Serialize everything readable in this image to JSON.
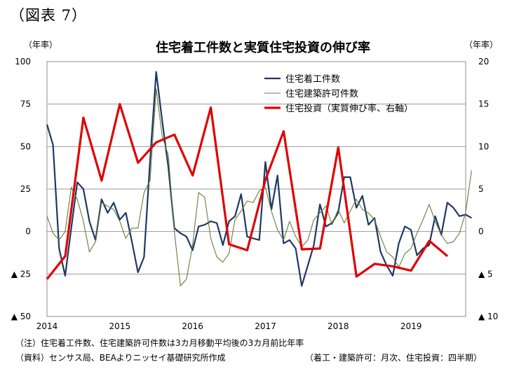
{
  "figure_label": "（図表 7）",
  "notes": {
    "note": "（注）住宅着工件数、住宅建築許可件数は3カ月移動平均後の3カ月前比年率",
    "source": "（資料）センサス局、BEAよりニッセイ基礎研究所作成",
    "frequency": "（着工・建築許可：月次、住宅投資：四半期）"
  },
  "chart_data": {
    "type": "line",
    "title": "住宅着工件数と実質住宅投資の伸び率",
    "left_axis_unit": "（年率）",
    "right_axis_unit": "（年率）",
    "x_labels": [
      "2014",
      "2015",
      "2016",
      "2017",
      "2018",
      "2019"
    ],
    "y_left": {
      "min": -50,
      "max": 100,
      "ticks": [
        100,
        75,
        50,
        25,
        0,
        -25,
        -50
      ],
      "tick_labels": [
        "100",
        "75",
        "50",
        "25",
        "0",
        "▲ 25",
        "▲ 50"
      ]
    },
    "y_right": {
      "min": -10,
      "max": 20,
      "ticks": [
        20,
        15,
        10,
        5,
        0,
        -5,
        -10
      ],
      "tick_labels": [
        "20",
        "15",
        "10",
        "5",
        "0",
        "▲ 5",
        "▲ 10"
      ]
    },
    "grid": true,
    "legend_position": "top-right",
    "series": [
      {
        "name": "住宅着工件数",
        "axis": "left",
        "color": "#1f3864",
        "x_start": 2014.0,
        "x_step": 0.0833,
        "values": [
          63,
          51,
          -10,
          -26,
          2,
          29,
          25,
          6,
          -5,
          19,
          11,
          17,
          7,
          11,
          -6,
          -24,
          -15,
          42,
          94,
          65,
          38,
          2,
          -1,
          -3,
          -11,
          3,
          4,
          6,
          5,
          -8,
          6,
          9,
          22,
          -3,
          -4,
          -5,
          41,
          13,
          33,
          -7,
          -5,
          -10,
          -32,
          -20,
          -8,
          16,
          3,
          5,
          11,
          32,
          32,
          14,
          21,
          4,
          8,
          -12,
          -20,
          -26,
          -7,
          3,
          1,
          -14,
          -10,
          -8,
          9,
          -2,
          17,
          14,
          9,
          10,
          8
        ]
      },
      {
        "name": "住宅建築許可件数",
        "axis": "left",
        "color": "#6b7b3a",
        "x_start": 2014.0,
        "x_step": 0.0833,
        "values": [
          9,
          -1,
          -5,
          0,
          26,
          19,
          6,
          -12,
          -6,
          17,
          15,
          13,
          6,
          -4,
          2,
          2,
          23,
          30,
          84,
          56,
          45,
          0,
          -32,
          -28,
          -8,
          23,
          20,
          -4,
          -15,
          -18,
          -13,
          7,
          12,
          18,
          17,
          24,
          26,
          12,
          1,
          -5,
          6,
          -3,
          -9,
          -5,
          7,
          11,
          15,
          4,
          13,
          5,
          12,
          19,
          13,
          11,
          7,
          -3,
          -12,
          -15,
          -21,
          -13,
          -10,
          -1,
          7,
          16,
          6,
          -2,
          -7,
          -6,
          -1,
          11,
          36
        ]
      },
      {
        "name": "住宅投資（実質伸び率、右軸）",
        "axis": "right",
        "color": "#e00000",
        "x_start": 2014.0,
        "x_step": 0.25,
        "values": [
          -5.6,
          -2.9,
          13.4,
          6.0,
          15.0,
          8.1,
          10.5,
          11.4,
          6.6,
          14.6,
          -1.5,
          -2.2,
          6.1,
          11.8,
          -2.1,
          -2.0,
          9.9,
          -5.3,
          -3.8,
          -4.1,
          -4.6,
          -1.1,
          -2.9
        ]
      }
    ]
  }
}
